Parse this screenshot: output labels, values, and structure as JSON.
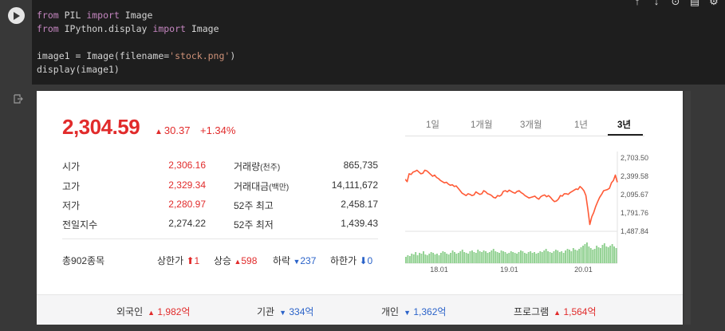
{
  "code_lines": [
    {
      "parts": [
        {
          "t": "from",
          "c": "kw"
        },
        {
          "t": " PIL "
        },
        {
          "t": "import",
          "c": "kw"
        },
        {
          "t": " Image"
        }
      ]
    },
    {
      "parts": [
        {
          "t": "from",
          "c": "kw"
        },
        {
          "t": " IPython.display "
        },
        {
          "t": "import",
          "c": "kw"
        },
        {
          "t": " Image"
        }
      ]
    },
    {
      "parts": [
        {
          "t": ""
        }
      ]
    },
    {
      "parts": [
        {
          "t": "image1 = Image(filename="
        },
        {
          "t": "'stock.png'",
          "c": "str"
        },
        {
          "t": ")"
        }
      ]
    },
    {
      "parts": [
        {
          "t": "display(image1)"
        }
      ]
    }
  ],
  "index": {
    "price": "2,304.59",
    "change_arrow": "▲",
    "change": "30.37",
    "change_pct": "+1.34%"
  },
  "stats_left": [
    {
      "label": "시가",
      "value": "2,306.16",
      "color": "red"
    },
    {
      "label": "고가",
      "value": "2,329.34",
      "color": "red"
    },
    {
      "label": "저가",
      "value": "2,280.97",
      "color": "red"
    },
    {
      "label": "전일지수",
      "value": "2,274.22",
      "color": "plain"
    }
  ],
  "stats_right": [
    {
      "label": "거래량",
      "unit": "(천주)",
      "value": "865,735"
    },
    {
      "label": "거래대금",
      "unit": "(백만)",
      "value": "14,111,672"
    },
    {
      "label": "52주 최고",
      "unit": "",
      "value": "2,458.17"
    },
    {
      "label": "52주 최저",
      "unit": "",
      "value": "1,439.43"
    }
  ],
  "breadth": {
    "total": "총902종목",
    "upper_limit_label": "상한가",
    "upper_limit_arrow": "⬆",
    "upper_limit": "1",
    "rise_label": "상승",
    "rise_arrow": "▲",
    "rise": "598",
    "fall_label": "하락",
    "fall_arrow": "▼",
    "fall": "237",
    "lower_limit_label": "하한가",
    "lower_limit_arrow": "⬇",
    "lower_limit": "0"
  },
  "tabs": [
    "1일",
    "1개월",
    "3개월",
    "1년",
    "3년"
  ],
  "active_tab": "3년",
  "investors": [
    {
      "label": "외국인",
      "arrow": "▲",
      "value": "1,982억",
      "dir": "up"
    },
    {
      "label": "기관",
      "arrow": "▼",
      "value": "334억",
      "dir": "dn"
    },
    {
      "label": "개인",
      "arrow": "▼",
      "value": "1,362억",
      "dir": "dn"
    },
    {
      "label": "프로그램",
      "arrow": "▲",
      "value": "1,564억",
      "dir": "up"
    }
  ],
  "chart_data": {
    "type": "line",
    "title": "",
    "y_ticks": [
      "2,703.50",
      "2,399.58",
      "2,095.67",
      "1,791.76",
      "1,487.84"
    ],
    "x_ticks": [
      "18.01",
      "19.01",
      "20.01"
    ],
    "ylim": [
      1487.84,
      2703.5
    ],
    "series": [
      {
        "values": [
          2350,
          2310,
          2440,
          2430,
          2470,
          2480,
          2500,
          2470,
          2440,
          2450,
          2500,
          2490,
          2460,
          2430,
          2400,
          2420,
          2380,
          2360,
          2330,
          2310,
          2290,
          2300,
          2270,
          2250,
          2260,
          2230,
          2240,
          2200,
          2160,
          2120,
          2100,
          2080,
          2110,
          2100,
          2080,
          2090,
          2140,
          2120,
          2100,
          2110,
          2160,
          2140,
          2110,
          2100,
          2080,
          2050,
          2040,
          2080,
          2070,
          2090,
          2150,
          2160,
          2140,
          2170,
          2150,
          2130,
          2120,
          2150,
          2160,
          2130,
          2110,
          2080,
          2060,
          2040,
          2050,
          2060,
          2070,
          2040,
          2020,
          2060,
          2080,
          2090,
          2060,
          2080,
          2050,
          2010,
          1980,
          1990,
          2020,
          2080,
          2070,
          2110,
          2110,
          2100,
          2130,
          2150,
          2170,
          2190,
          2180,
          2230,
          2200,
          2160,
          2080,
          1850,
          1600,
          1730,
          1800,
          1900,
          1980,
          2050,
          2100,
          2160,
          2170,
          2180,
          2200,
          2290,
          2330,
          2420,
          2300
        ]
      }
    ],
    "volume": [
      8,
      10,
      9,
      12,
      11,
      14,
      10,
      13,
      12,
      15,
      11,
      10,
      12,
      14,
      13,
      11,
      12,
      10,
      13,
      15,
      14,
      12,
      11,
      13,
      16,
      14,
      12,
      13,
      15,
      17,
      14,
      13,
      12,
      15,
      16,
      14,
      13,
      17,
      15,
      14,
      16,
      15,
      13,
      14,
      16,
      18,
      15,
      14,
      13,
      16,
      15,
      14,
      12,
      13,
      15,
      14,
      13,
      12,
      14,
      16,
      15,
      13,
      12,
      14,
      15,
      13,
      14,
      12,
      13,
      15,
      14,
      16,
      18,
      15,
      14,
      13,
      15,
      17,
      16,
      14,
      15,
      13,
      16,
      18,
      17,
      15,
      19,
      17,
      16,
      18,
      20,
      22,
      24,
      26,
      21,
      19,
      17,
      18,
      22,
      20,
      19,
      23,
      25,
      21,
      20,
      22,
      24,
      21,
      19
    ]
  }
}
